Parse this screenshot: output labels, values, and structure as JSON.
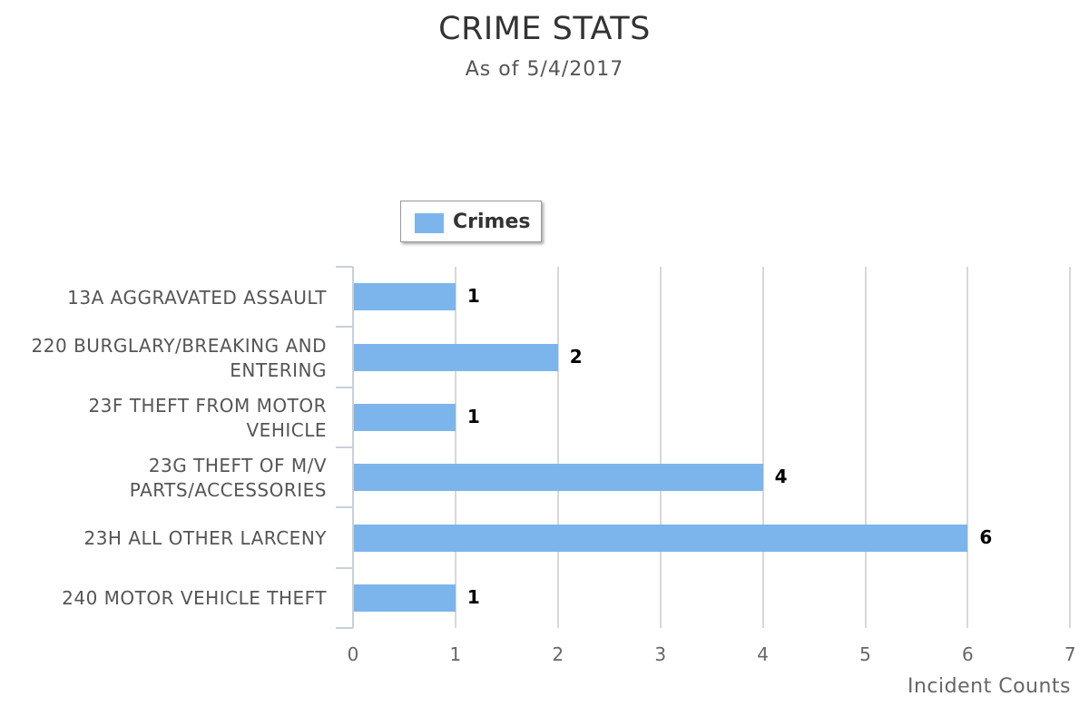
{
  "header": {
    "title": "CRIME STATS",
    "subtitle": "As of 5/4/2017"
  },
  "legend": {
    "label": "Crimes",
    "color": "#7cb5ec"
  },
  "axis": {
    "x_title": "Incident Counts",
    "x_ticks": [
      "0",
      "1",
      "2",
      "3",
      "4",
      "5",
      "6",
      "7"
    ]
  },
  "chart_data": {
    "type": "bar",
    "orientation": "horizontal",
    "title": "CRIME STATS",
    "subtitle": "As of 5/4/2017",
    "xlabel": "Incident Counts",
    "ylabel": "",
    "xlim": [
      0,
      7
    ],
    "grid": true,
    "legend_position": "top-left",
    "categories": [
      "13A AGGRAVATED ASSAULT",
      "220 BURGLARY/BREAKING AND ENTERING",
      "23F THEFT FROM MOTOR VEHICLE",
      "23G THEFT OF M/V PARTS/ACCESSORIES",
      "23H ALL OTHER LARCENY",
      "240 MOTOR VEHICLE THEFT"
    ],
    "category_lines": [
      [
        "13A AGGRAVATED ASSAULT"
      ],
      [
        "220 BURGLARY/BREAKING AND",
        "ENTERING"
      ],
      [
        "23F THEFT FROM MOTOR",
        "VEHICLE"
      ],
      [
        "23G THEFT OF M/V",
        "PARTS/ACCESSORIES"
      ],
      [
        "23H ALL OTHER LARCENY"
      ],
      [
        "240 MOTOR VEHICLE THEFT"
      ]
    ],
    "series": [
      {
        "name": "Crimes",
        "color": "#7cb5ec",
        "values": [
          1,
          2,
          1,
          4,
          6,
          1
        ]
      }
    ]
  }
}
